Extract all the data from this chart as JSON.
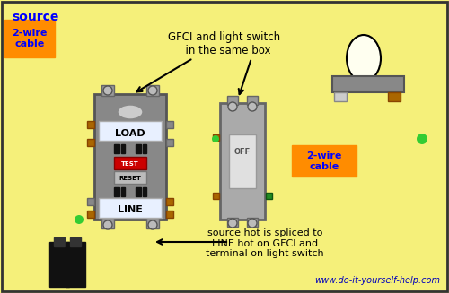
{
  "bg_color": "#f5f07a",
  "title_text": "source",
  "title_color": "#0000ff",
  "cable_label": "2-wire\ncable",
  "cable_label2": "2-wire\ncable",
  "cable_box_color": "#ff8c00",
  "annotation1": "GFCI and light switch\n  in the same box",
  "annotation2": "source hot is spliced to\nLINE hot on GFCI and\nterminal on light switch",
  "website": "www.do-it-yourself-help.com",
  "wire_black": "#000000",
  "wire_white": "#aaaaaa",
  "wire_green": "#228b22",
  "wire_green2": "#33cc33",
  "gfci_body": "#888888",
  "gfci_load_label": "LOAD",
  "gfci_line_label": "LINE",
  "gfci_test_color": "#cc0000",
  "switch_body": "#999999",
  "lamp_body": "#888888",
  "lamp_bulb": "#fffff0"
}
